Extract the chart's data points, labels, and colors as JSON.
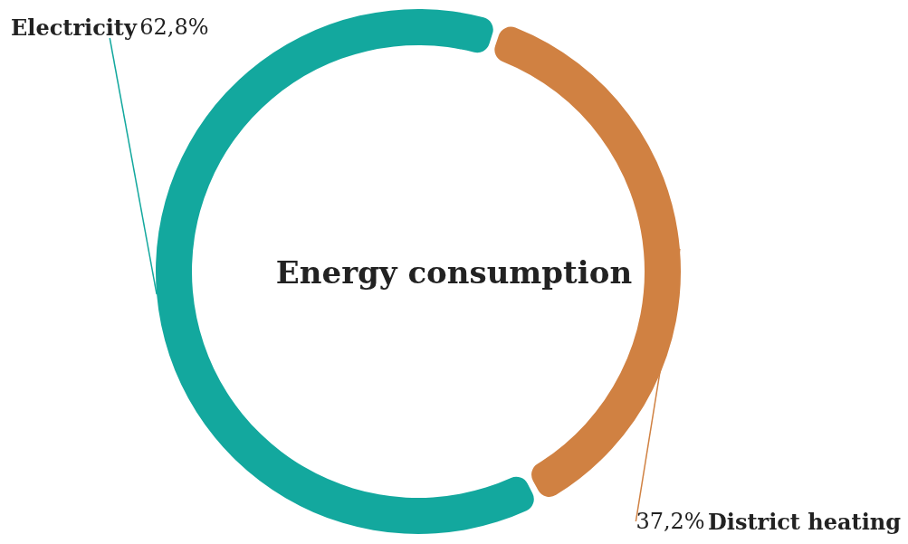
{
  "chart_data": {
    "type": "donut",
    "title": "Energy consumption",
    "categories": [
      "Electricity",
      "District heating"
    ],
    "values": [
      62.8,
      37.2
    ],
    "value_labels": [
      "62,8%",
      "37,2%"
    ],
    "colors": [
      "#13a89e",
      "#d08142"
    ],
    "legend": false
  }
}
